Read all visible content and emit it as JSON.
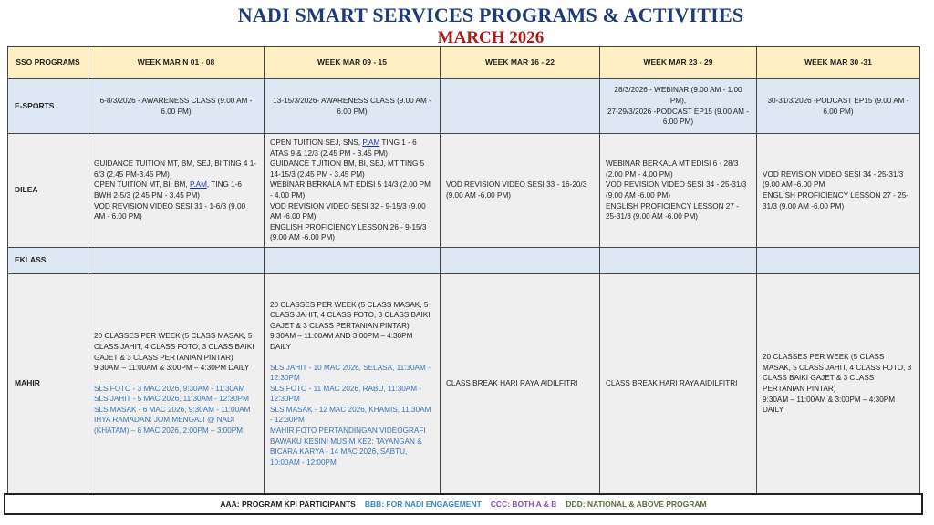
{
  "title": "NADI SMART SERVICES PROGRAMS & ACTIVITIES",
  "subtitle": "MARCH 2026",
  "colors": {
    "header_bg": "#fdeec4",
    "row_blue": "#dde8f4",
    "row_grey": "#efefef",
    "title": "#1f3a7a",
    "subtitle": "#b01818",
    "blue_text": "#3a74b4"
  },
  "headers": [
    "SSO PROGRAMS",
    "WEEK MAR N 01 - 08",
    "WEEK MAR  09 - 15",
    "WEEK MAR 16 - 22",
    "WEEK MAR  23 - 29",
    "WEEK MAR 30 -31"
  ],
  "rows": [
    {
      "program": "E-SPORTS",
      "style": "blue",
      "align": "center",
      "cells": [
        [
          {
            "segs": [
              {
                "text": "6-8/3/2026 - AWARENESS CLASS (9.00 AM - 6.00 PM)"
              }
            ]
          }
        ],
        [
          {
            "segs": [
              {
                "text": "13-15/3/2026- AWARENESS CLASS (9.00 AM - 6.00 PM)"
              }
            ]
          }
        ],
        [],
        [
          {
            "segs": [
              {
                "text": "28/3/2026 - WEBINAR (9.00 AM - 1.00 PM),"
              }
            ]
          },
          {
            "segs": [
              {
                "text": "27-29/3/2026 -PODCAST EP15 (9.00 AM - 6.00 PM)"
              }
            ]
          }
        ],
        [
          {
            "segs": [
              {
                "text": "30-31/3/2026 -PODCAST EP15 (9.00 AM - 6.00 PM)"
              }
            ]
          }
        ]
      ]
    },
    {
      "program": "DILEA",
      "style": "grey",
      "align": "left",
      "cells": [
        [
          {
            "segs": [
              {
                "text": "GUIDANCE TUITION MT, BM, SEJ, BI TING 4 1-6/3 (2.45 PM-3.45 PM)"
              }
            ]
          },
          {
            "segs": [
              {
                "text": "OPEN TUITION MT, BI, BM, "
              },
              {
                "text": "P.AM",
                "link": true
              },
              {
                "text": ", TING 1-6 BWH 2-5/3 (2.45 PM - 3.45 PM)"
              }
            ]
          },
          {
            "segs": [
              {
                "text": "VOD REVISION VIDEO SESI 31 - 1-6/3 (9.00 AM - 6.00 PM)"
              }
            ]
          }
        ],
        [
          {
            "segs": [
              {
                "text": "OPEN TUITION SEJ, SNS, "
              },
              {
                "text": "P.AM",
                "link": true
              },
              {
                "text": " TING 1 - 6 ATAS 9 & 12/3 (2.45 PM - 3.45 PM)"
              }
            ]
          },
          {
            "segs": [
              {
                "text": "GUIDANCE TUITION BM, BI, SEJ, MT TING 5 14-15/3 (2.45 PM - 3.45 PM)"
              }
            ]
          },
          {
            "segs": [
              {
                "text": "WEBINAR BERKALA MT EDISI 5 14/3 (2.00 PM - 4.00 PM)"
              }
            ]
          },
          {
            "segs": [
              {
                "text": "VOD REVISION VIDEO SESI 32 - 9-15/3 (9.00 AM -6.00 PM)"
              }
            ]
          },
          {
            "segs": [
              {
                "text": "ENGLISH PROFICIENCY LESSON 26 - 9-15/3 (9.00 AM -6.00 PM)"
              }
            ]
          }
        ],
        [
          {
            "segs": [
              {
                "text": "VOD REVISION VIDEO SESI 33 - 16-20/3 (9.00 AM -6.00 PM)"
              }
            ]
          }
        ],
        [
          {
            "segs": [
              {
                "text": "WEBINAR BERKALA MT EDISI 6 - 28/3 (2.00 PM - 4.00 PM)"
              }
            ]
          },
          {
            "segs": [
              {
                "text": "VOD REVISION VIDEO SESI 34 - 25-31/3 (9.00 AM -6.00 PM)"
              }
            ]
          },
          {
            "segs": [
              {
                "text": "ENGLISH PROFICIENCY LESSON 27 - 25-31/3 (9.00 AM -6.00 PM)"
              }
            ]
          }
        ],
        [
          {
            "segs": [
              {
                "text": "VOD REVISION VIDEO SESI 34 - 25-31/3 (9.00 AM -6.00 PM"
              }
            ]
          },
          {
            "segs": [
              {
                "text": "ENGLISH PROFICIENCY LESSON 27 - 25-31/3 (9.00 AM -6.00 PM)"
              }
            ]
          }
        ]
      ]
    },
    {
      "program": "EKLASS",
      "style": "blue",
      "align": "left",
      "cells": [
        [],
        [],
        [],
        [],
        []
      ]
    },
    {
      "program": "MAHIR",
      "style": "grey",
      "align": "left",
      "cells": [
        [
          {
            "segs": [
              {
                "text": "20 CLASSES PER WEEK (5 CLASS MASAK, 5 CLASS JAHIT, 4 CLASS FOTO, 3 CLASS BAIKI GAJET & 3 CLASS PERTANIAN PINTAR)"
              }
            ]
          },
          {
            "segs": [
              {
                "text": "9:30AM – 11:00AM & 3:00PM – 4:30PM DAILY"
              }
            ]
          },
          {
            "gap": true
          },
          {
            "tone": "blue",
            "segs": [
              {
                "text": "SLS FOTO - 3 MAC 2026, 9:30AM - 11:30AM"
              }
            ]
          },
          {
            "tone": "blue",
            "segs": [
              {
                "text": "SLS JAHIT - 5 MAC 2026, 11:30AM - 12:30PM"
              }
            ]
          },
          {
            "tone": "blue",
            "segs": [
              {
                "text": "SLS MASAK - 6 MAC 2026, 9:30AM - 11:00AM"
              }
            ]
          },
          {
            "tone": "blue",
            "segs": [
              {
                "text": "IHYA RAMADAN: JOM MENGAJI @ NADI (KHATAM) – 8 MAC 2026, 2:00PM – 3:00PM"
              }
            ]
          }
        ],
        [
          {
            "segs": [
              {
                "text": "20 CLASSES PER WEEK (5 CLASS MASAK, 5 CLASS JAHIT, 4 CLASS FOTO, 3 CLASS BAIKI GAJET & 3 CLASS PERTANIAN PINTAR)"
              }
            ]
          },
          {
            "segs": [
              {
                "text": "9:30AM – 11:00AM AND 3:00PM – 4:30PM DAILY"
              }
            ]
          },
          {
            "gap": true
          },
          {
            "tone": "blue",
            "segs": [
              {
                "text": "SLS JAHIT - 10 MAC 2026, SELASA, 11:30AM - 12:30PM"
              }
            ]
          },
          {
            "tone": "blue",
            "segs": [
              {
                "text": "SLS FOTO - 11 MAC 2026, RABU, 11:30AM - 12:30PM"
              }
            ]
          },
          {
            "tone": "blue",
            "segs": [
              {
                "text": "SLS MASAK - 12 MAC 2026, KHAMIS, 11:30AM - 12:30PM"
              }
            ]
          },
          {
            "tone": "blue",
            "segs": [
              {
                "text": "MAHIR FOTO PERTANDINGAN VIDEOGRAFI BAWAKU KESINI MUSIM KE2: TAYANGAN & BICARA KARYA - 14 MAC 2026, SABTU, 10:00AM - 12:00PM"
              }
            ]
          }
        ],
        [
          {
            "segs": [
              {
                "text": "CLASS BREAK HARI RAYA AIDILFITRI"
              }
            ]
          }
        ],
        [
          {
            "segs": [
              {
                "text": "CLASS BREAK HARI RAYA AIDILFITRI"
              }
            ]
          }
        ],
        [
          {
            "segs": [
              {
                "text": "20 CLASSES PER WEEK (5 CLASS MASAK, 5 CLASS JAHIT, 4 CLASS FOTO, 3 CLASS BAIKI GAJET & 3 CLASS PERTANIAN PINTAR)"
              }
            ]
          },
          {
            "segs": [
              {
                "text": "9:30AM – 11:00AM & 3:00PM – 4:30PM DAILY"
              }
            ]
          }
        ]
      ]
    }
  ],
  "legend": [
    {
      "text": "AAA: PROGRAM KPI PARTICIPANTS",
      "color": "#222222"
    },
    {
      "text": "BBB:  FOR NADI ENGAGEMENT",
      "color": "#3a86c0"
    },
    {
      "text": "CCC:  BOTH  A & B",
      "color": "#8a4fb0"
    },
    {
      "text": "DDD: NATIONAL & ABOVE PROGRAM",
      "color": "#5a6e3a"
    }
  ]
}
